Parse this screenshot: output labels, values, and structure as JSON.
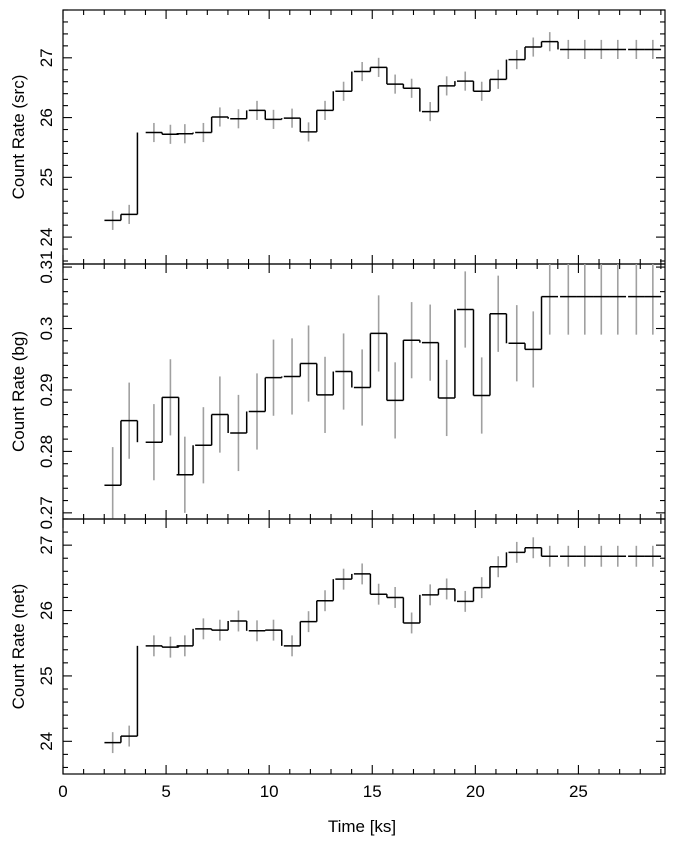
{
  "chart_data": {
    "type": "line",
    "style": "step-histogram with error bars",
    "xlabel": "Time [ks]",
    "xlim": [
      0,
      29.2
    ],
    "x_ticks": [
      0,
      5,
      10,
      15,
      20,
      25
    ],
    "bin_width": 0.8,
    "x": [
      2.41,
      3.21,
      4.41,
      5.21,
      5.91,
      6.81,
      7.61,
      8.51,
      9.41,
      10.21,
      11.11,
      11.91,
      12.71,
      13.61,
      14.51,
      15.31,
      16.11,
      16.91,
      17.81,
      18.61,
      19.51,
      20.31,
      21.11,
      22.01,
      22.81,
      23.61,
      24.51,
      25.31,
      26.11,
      26.91,
      27.81,
      28.61
    ],
    "panels": [
      {
        "ylabel": "Count Rate (src)",
        "ylim": [
          23.55,
          27.8
        ],
        "y_ticks": [
          24,
          25,
          26,
          27
        ],
        "y_tick_labels": [
          "24",
          "25",
          "26",
          "27"
        ],
        "y": [
          24.28,
          24.38,
          25.75,
          25.72,
          25.73,
          25.75,
          26.01,
          25.98,
          26.12,
          25.97,
          25.99,
          25.76,
          26.12,
          26.44,
          26.77,
          26.84,
          26.56,
          26.49,
          26.1,
          26.53,
          26.61,
          26.44,
          26.64,
          26.97,
          27.18,
          27.27,
          27.14,
          27.14,
          27.14,
          27.14,
          27.14,
          27.14
        ],
        "err": [
          0.16,
          0.16,
          0.16,
          0.16,
          0.16,
          0.16,
          0.16,
          0.16,
          0.16,
          0.16,
          0.16,
          0.16,
          0.16,
          0.16,
          0.16,
          0.16,
          0.16,
          0.16,
          0.16,
          0.16,
          0.16,
          0.16,
          0.16,
          0.16,
          0.16,
          0.16,
          0.16,
          0.16,
          0.16,
          0.16,
          0.16,
          0.16
        ]
      },
      {
        "ylabel": "Count Rate (bg)",
        "ylim": [
          0.269,
          0.3105
        ],
        "y_ticks": [
          0.27,
          0.28,
          0.29,
          0.3,
          0.31
        ],
        "y_tick_labels": [
          "0.27",
          "0.28",
          "0.29",
          "0.3",
          "0.31"
        ],
        "y": [
          0.2745,
          0.285,
          0.2815,
          0.2888,
          0.2762,
          0.281,
          0.286,
          0.283,
          0.2865,
          0.292,
          0.2922,
          0.2943,
          0.2892,
          0.293,
          0.2904,
          0.2992,
          0.2883,
          0.2981,
          0.2977,
          0.2887,
          0.3031,
          0.2891,
          0.3024,
          0.2976,
          0.2966,
          0.3052,
          0.3052,
          0.3052,
          0.3052,
          0.3052,
          0.3052,
          0.3052
        ],
        "err": [
          0.0062,
          0.0062,
          0.0062,
          0.0062,
          0.0062,
          0.0062,
          0.0062,
          0.0062,
          0.0062,
          0.0062,
          0.0062,
          0.0062,
          0.0062,
          0.0062,
          0.0062,
          0.0062,
          0.0062,
          0.0062,
          0.0062,
          0.0062,
          0.0062,
          0.0062,
          0.0062,
          0.0062,
          0.0062,
          0.0062,
          0.0062,
          0.0062,
          0.0062,
          0.0062,
          0.0062,
          0.0062
        ]
      },
      {
        "ylabel": "Count Rate (net)",
        "ylim": [
          23.5,
          27.4
        ],
        "y_ticks": [
          24,
          25,
          26,
          27
        ],
        "y_tick_labels": [
          "24",
          "25",
          "26",
          "27"
        ],
        "y": [
          23.98,
          24.08,
          25.46,
          25.44,
          25.46,
          25.72,
          25.7,
          25.84,
          25.69,
          25.7,
          25.46,
          25.83,
          26.15,
          26.48,
          26.56,
          26.25,
          26.2,
          25.81,
          26.24,
          26.33,
          26.14,
          26.35,
          26.67,
          26.89,
          26.96,
          26.83,
          26.83,
          26.83,
          26.83,
          26.83,
          26.83,
          26.83
        ],
        "err": [
          0.16,
          0.16,
          0.16,
          0.16,
          0.16,
          0.16,
          0.16,
          0.16,
          0.16,
          0.16,
          0.16,
          0.16,
          0.16,
          0.16,
          0.16,
          0.16,
          0.16,
          0.16,
          0.16,
          0.16,
          0.16,
          0.16,
          0.16,
          0.16,
          0.16,
          0.16,
          0.16,
          0.16,
          0.16,
          0.16,
          0.16,
          0.16
        ]
      }
    ],
    "grid": false,
    "colors": {
      "line": "#000000",
      "errorbar": "#a0a0a0"
    }
  }
}
